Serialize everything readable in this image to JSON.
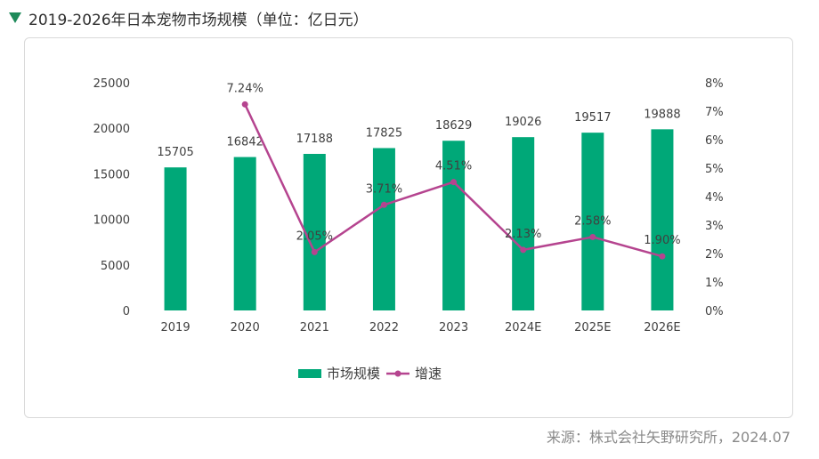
{
  "header": {
    "title": "2019-2026年日本宠物市场规模（单位：亿日元）"
  },
  "footer": {
    "source": "来源：株式会社矢野研究所，2024.07"
  },
  "colors": {
    "bar": "#00a878",
    "line": "#b5448f",
    "text": "#404040",
    "title_marker": "#1e8a5a"
  },
  "chart_data": {
    "type": "bar",
    "categories": [
      "2019",
      "2020",
      "2021",
      "2022",
      "2023",
      "2024E",
      "2025E",
      "2026E"
    ],
    "series": [
      {
        "name": "市场规模",
        "type": "bar",
        "axis": "left",
        "values": [
          15705,
          16842,
          17188,
          17825,
          18629,
          19026,
          19517,
          19888
        ],
        "labels": [
          "15705",
          "16842",
          "17188",
          "17825",
          "18629",
          "19026",
          "19517",
          "19888"
        ]
      },
      {
        "name": "增速",
        "type": "line",
        "axis": "right",
        "values": [
          null,
          7.24,
          2.05,
          3.71,
          4.51,
          2.13,
          2.58,
          1.9
        ],
        "labels": [
          "",
          "7.24%",
          "2.05%",
          "3.71%",
          "4.51%",
          "2.13%",
          "2.58%",
          "1.90%"
        ]
      }
    ],
    "y_left": {
      "min": 0,
      "max": 25000,
      "ticks": [
        "0",
        "5000",
        "10000",
        "15000",
        "20000",
        "25000"
      ]
    },
    "y_right": {
      "min": 0,
      "max": 8,
      "ticks": [
        "0%",
        "1%",
        "2%",
        "3%",
        "4%",
        "5%",
        "6%",
        "7%",
        "8%"
      ]
    },
    "grid": false,
    "legend": {
      "position": "bottom",
      "items": [
        "市场规模",
        "增速"
      ]
    }
  }
}
